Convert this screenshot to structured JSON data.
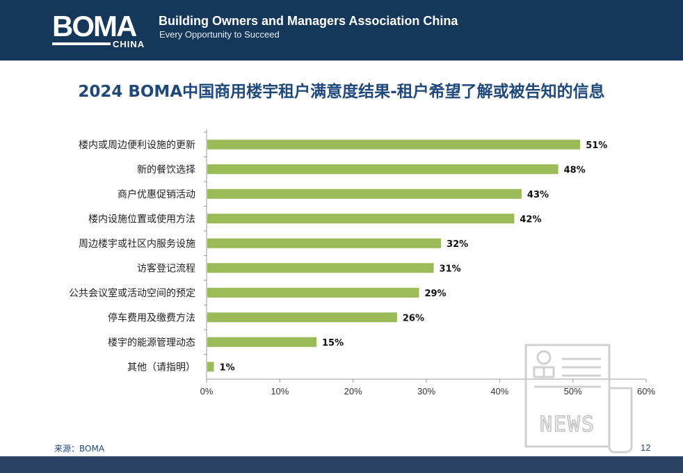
{
  "header": {
    "logo_text": "BOMA",
    "logo_subtext": "CHINA",
    "org_name": "Building Owners and Managers Association China",
    "tagline": "Every Opportunity to Succeed",
    "background_color": "#15375a"
  },
  "title": "2024 BOMA中国商用楼宇租户满意度结果-租户希望了解或被告知的信息",
  "chart_data": {
    "type": "bar",
    "orientation": "horizontal",
    "categories": [
      "楼内或周边便利设施的更新",
      "新的餐饮选择",
      "商户优惠促销活动",
      "楼内设施位置或使用方法",
      "周边楼宇或社区内服务设施",
      "访客登记流程",
      "公共会议室或活动空间的预定",
      "停车费用及缴费方法",
      "楼宇的能源管理动态",
      "其他（请指明）"
    ],
    "values": [
      51,
      48,
      43,
      42,
      32,
      31,
      29,
      26,
      15,
      1
    ],
    "data_labels": [
      "51%",
      "48%",
      "43%",
      "42%",
      "32%",
      "31%",
      "29%",
      "26%",
      "15%",
      "1%"
    ],
    "x_ticks": [
      "0%",
      "10%",
      "20%",
      "30%",
      "40%",
      "50%",
      "60%"
    ],
    "xlim": [
      0,
      60
    ],
    "grid": false,
    "bar_color": "#9bbb59",
    "axis_color": "#9a9a9a"
  },
  "footer": {
    "source": "来源：BOMA",
    "page_number": "12",
    "bar_color": "#2b4364"
  },
  "watermark": {
    "text": "NEWS",
    "icon": "news-document-icon"
  }
}
